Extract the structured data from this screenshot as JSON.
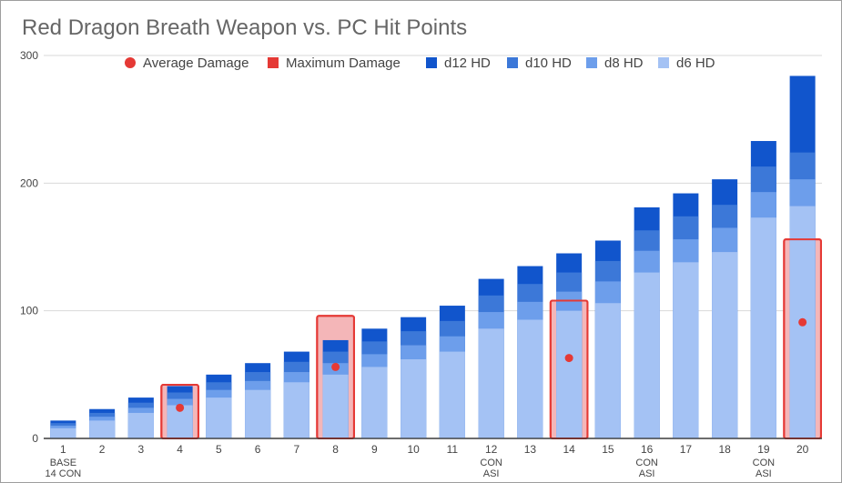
{
  "chart_data": {
    "type": "bar",
    "title": "Red Dragon Breath Weapon vs. PC Hit Points",
    "ylim": [
      0,
      300
    ],
    "yticks": [
      0,
      100,
      200,
      300
    ],
    "grid": true,
    "legend_position": "top",
    "categories": [
      "1",
      "2",
      "3",
      "4",
      "5",
      "6",
      "7",
      "8",
      "9",
      "10",
      "11",
      "12",
      "13",
      "14",
      "15",
      "16",
      "17",
      "18",
      "19",
      "20"
    ],
    "category_sublabels": {
      "1": [
        "BASE",
        "14 CON"
      ],
      "12": [
        "CON",
        "ASI"
      ],
      "16": [
        "CON",
        "ASI"
      ],
      "19": [
        "CON",
        "ASI"
      ]
    },
    "hit_die_series": [
      {
        "name": "d6 HD",
        "color": "#a4c2f4",
        "values": [
          8,
          14,
          20,
          26,
          32,
          38,
          44,
          50,
          56,
          62,
          68,
          86,
          93,
          100,
          106,
          130,
          138,
          146,
          173,
          182
        ]
      },
      {
        "name": "d8 HD",
        "color": "#6d9eeb",
        "values": [
          10,
          17,
          24,
          31,
          38,
          45,
          52,
          59,
          66,
          73,
          80,
          99,
          107,
          115,
          123,
          147,
          156,
          165,
          193,
          203
        ]
      },
      {
        "name": "d10 HD",
        "color": "#3c78d8",
        "values": [
          12,
          20,
          28,
          36,
          44,
          52,
          60,
          68,
          76,
          84,
          92,
          112,
          121,
          130,
          139,
          163,
          174,
          183,
          213,
          224
        ]
      },
      {
        "name": "d12 HD",
        "color": "#1155cc",
        "values": [
          14,
          23,
          32,
          41,
          50,
          59,
          68,
          77,
          86,
          95,
          104,
          125,
          135,
          145,
          155,
          181,
          192,
          203,
          233,
          284
        ]
      }
    ],
    "average_damage": {
      "name": "Average Damage",
      "color": "#e53935",
      "points": [
        {
          "x": "4",
          "y": 24
        },
        {
          "x": "8",
          "y": 56
        },
        {
          "x": "14",
          "y": 63
        },
        {
          "x": "20",
          "y": 91
        }
      ]
    },
    "maximum_damage": {
      "name": "Maximum Damage",
      "color": "#e53935",
      "fill": "#f4b6b8",
      "points": [
        {
          "x": "4",
          "y": 42
        },
        {
          "x": "8",
          "y": 96
        },
        {
          "x": "14",
          "y": 108
        },
        {
          "x": "20",
          "y": 156
        }
      ]
    },
    "legend": [
      "Average Damage",
      "Maximum Damage",
      "d12 HD",
      "d10 HD",
      "d8 HD",
      "d6 HD"
    ]
  }
}
